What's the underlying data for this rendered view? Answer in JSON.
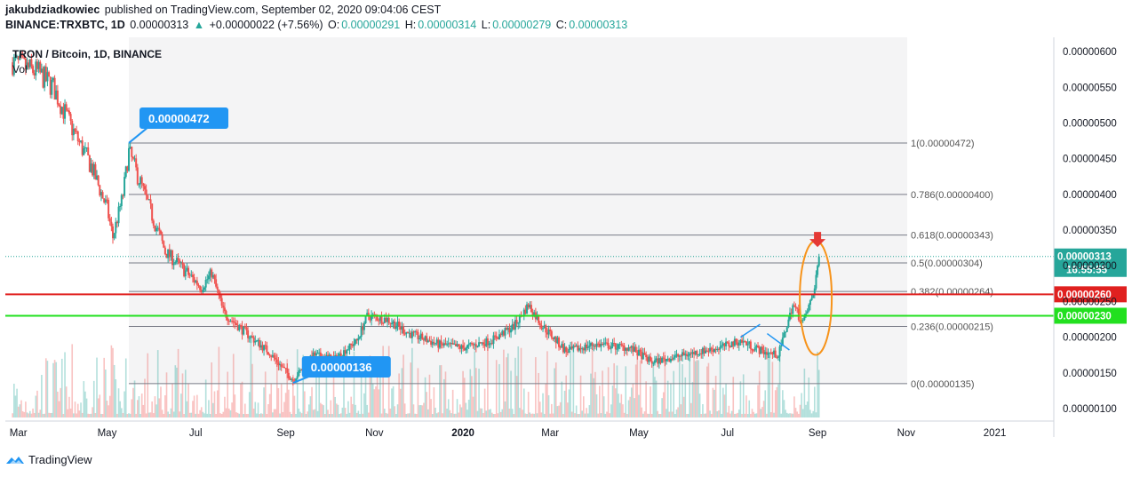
{
  "header": {
    "author": "jakubdziadkowiec",
    "published": "published on TradingView.com, September 02, 2020 09:04:06 CEST",
    "symbol": "BINANCE:TRXBTC, 1D",
    "last": "0.00000313",
    "change_arrow": "▲",
    "change": "+0.00000022 (+7.56%)",
    "o_label": "O:",
    "o_value": "0.00000291",
    "h_label": "H:",
    "h_value": "0.00000314",
    "l_label": "L:",
    "l_value": "0.00000279",
    "c_label": "C:",
    "c_value": "0.00000313"
  },
  "footer": {
    "brand": "TradingView",
    "logo_icon": "tradingview-logo-icon"
  },
  "colors": {
    "up": "#26a69a",
    "down": "#ef5350",
    "red_line": "#e0201f",
    "green_line": "#22e01f",
    "fib": "#787b86",
    "accent": "#2196f3",
    "circle": "#f7931a"
  },
  "chart_data": {
    "type": "candlestick",
    "title": "TRON / Bitcoin, 1D, BINANCE",
    "volume_label": "Vol",
    "x_ticks": [
      "Mar",
      "May",
      "Jul",
      "Sep",
      "Nov",
      "2020",
      "Mar",
      "May",
      "Jul",
      "Sep",
      "Nov",
      "2021"
    ],
    "y_ticks": [
      "0.00000600",
      "0.00000550",
      "0.00000500",
      "0.00000450",
      "0.00000400",
      "0.00000350",
      "0.00000300",
      "0.00000250",
      "0.00000200",
      "0.00000150",
      "0.00000100"
    ],
    "ylim": [
      8.5e-07,
      6.2e-06
    ],
    "grid": false,
    "fib_levels": [
      {
        "label": "1(0.00000472)",
        "value": 4.72e-06
      },
      {
        "label": "0.786(0.00000400)",
        "value": 4e-06
      },
      {
        "label": "0.618(0.00000343)",
        "value": 3.43e-06
      },
      {
        "label": "0.5(0.00000304)",
        "value": 3.04e-06
      },
      {
        "label": "0.382(0.00000264)",
        "value": 2.64e-06
      },
      {
        "label": "0.236(0.00000215)",
        "value": 2.15e-06
      },
      {
        "label": "0(0.00000135)",
        "value": 1.35e-06
      }
    ],
    "horizontal_lines": [
      {
        "label": "0.00000260",
        "value": 2.6e-06,
        "color": "#e0201f"
      },
      {
        "label": "0.00000230",
        "value": 2.3e-06,
        "color": "#22e01f"
      }
    ],
    "callouts": [
      {
        "label": "0.00000472",
        "value": 4.72e-06,
        "date": "2019-05-16"
      },
      {
        "label": "0.00000136",
        "value": 1.36e-06,
        "date": "2019-09-06"
      }
    ],
    "last_price": {
      "label": "0.00000313",
      "value": 3.13e-06,
      "countdown": "16:55:55"
    },
    "series_anchors": [
      [
        "2019-02-25",
        5.85e-06
      ],
      [
        "2019-03-15",
        5.7e-06
      ],
      [
        "2019-03-25",
        5.5e-06
      ],
      [
        "2019-04-05",
        5e-06
      ],
      [
        "2019-04-20",
        4.4e-06
      ],
      [
        "2019-05-01",
        3.8e-06
      ],
      [
        "2019-05-05",
        3.4e-06
      ],
      [
        "2019-05-12",
        4e-06
      ],
      [
        "2019-05-16",
        4.6e-06
      ],
      [
        "2019-05-25",
        4.1e-06
      ],
      [
        "2019-06-10",
        3.2e-06
      ],
      [
        "2019-06-25",
        2.9e-06
      ],
      [
        "2019-07-05",
        2.7e-06
      ],
      [
        "2019-07-12",
        2.9e-06
      ],
      [
        "2019-07-20",
        2.35e-06
      ],
      [
        "2019-08-05",
        2.05e-06
      ],
      [
        "2019-08-20",
        1.8e-06
      ],
      [
        "2019-09-06",
        1.4e-06
      ],
      [
        "2019-09-20",
        1.75e-06
      ],
      [
        "2019-10-05",
        1.7e-06
      ],
      [
        "2019-10-20",
        1.95e-06
      ],
      [
        "2019-10-27",
        2.3e-06
      ],
      [
        "2019-11-10",
        2.25e-06
      ],
      [
        "2019-11-25",
        2.05e-06
      ],
      [
        "2019-12-15",
        1.9e-06
      ],
      [
        "2020-01-01",
        1.85e-06
      ],
      [
        "2020-01-20",
        1.95e-06
      ],
      [
        "2020-02-05",
        2.15e-06
      ],
      [
        "2020-02-15",
        2.45e-06
      ],
      [
        "2020-02-25",
        2.15e-06
      ],
      [
        "2020-03-12",
        1.8e-06
      ],
      [
        "2020-04-01",
        1.9e-06
      ],
      [
        "2020-04-25",
        1.85e-06
      ],
      [
        "2020-05-10",
        1.65e-06
      ],
      [
        "2020-06-01",
        1.75e-06
      ],
      [
        "2020-06-25",
        1.85e-06
      ],
      [
        "2020-07-10",
        1.95e-06
      ],
      [
        "2020-07-25",
        1.8e-06
      ],
      [
        "2020-08-05",
        1.75e-06
      ],
      [
        "2020-08-15",
        2.45e-06
      ],
      [
        "2020-08-22",
        2.2e-06
      ],
      [
        "2020-08-29",
        2.6e-06
      ],
      [
        "2020-09-02",
        3.13e-06
      ]
    ]
  }
}
